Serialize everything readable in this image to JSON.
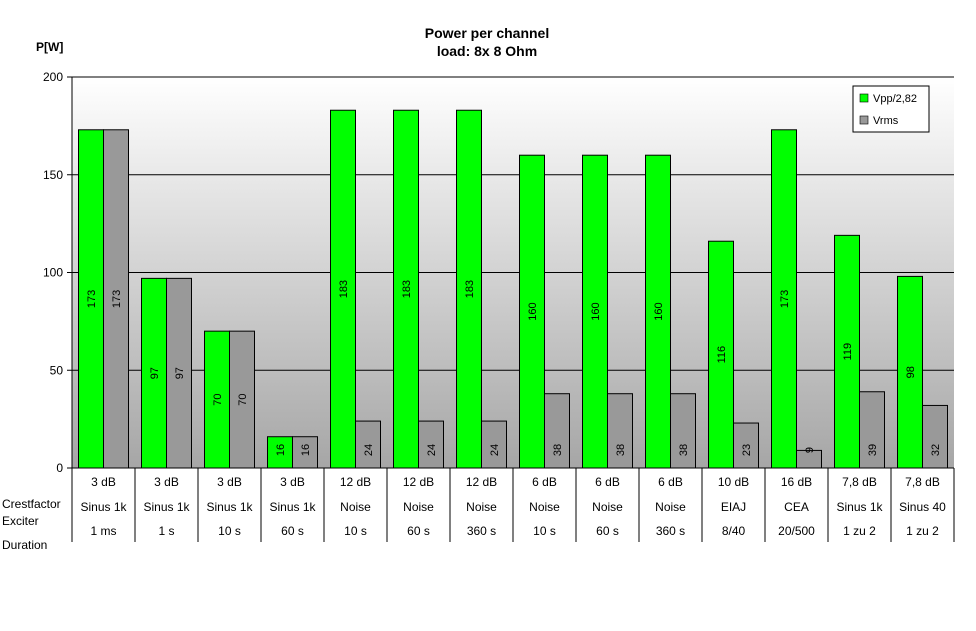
{
  "chart_data": {
    "type": "bar",
    "title_line1": "Power per channel",
    "title_line2": "load:  8x 8 Ohm",
    "ylabel": "P[W]",
    "ylim": [
      0,
      200
    ],
    "yticks": [
      0,
      50,
      100,
      150,
      200
    ],
    "grid": true,
    "legend_position": "top-right",
    "series": [
      {
        "name": "Vpp/2,82",
        "color": "#00ff00",
        "values": [
          173,
          97,
          70,
          16,
          183,
          183,
          183,
          160,
          160,
          160,
          116,
          173,
          119,
          98
        ]
      },
      {
        "name": "Vrms",
        "color": "#999999",
        "values": [
          173,
          97,
          70,
          16,
          24,
          24,
          24,
          38,
          38,
          38,
          23,
          9,
          39,
          32
        ]
      }
    ],
    "row_headers": [
      "Crestfactor",
      "Exciter",
      "Duration"
    ],
    "categories": [
      {
        "crestfactor": "3 dB",
        "exciter": "Sinus 1k",
        "duration": "1 ms"
      },
      {
        "crestfactor": "3 dB",
        "exciter": "Sinus 1k",
        "duration": "1 s"
      },
      {
        "crestfactor": "3 dB",
        "exciter": "Sinus 1k",
        "duration": "10 s"
      },
      {
        "crestfactor": "3 dB",
        "exciter": "Sinus 1k",
        "duration": "60 s"
      },
      {
        "crestfactor": "12 dB",
        "exciter": "Noise",
        "duration": "10 s"
      },
      {
        "crestfactor": "12 dB",
        "exciter": "Noise",
        "duration": "60 s"
      },
      {
        "crestfactor": "12 dB",
        "exciter": "Noise",
        "duration": "360 s"
      },
      {
        "crestfactor": "6 dB",
        "exciter": "Noise",
        "duration": "10 s"
      },
      {
        "crestfactor": "6 dB",
        "exciter": "Noise",
        "duration": "60 s"
      },
      {
        "crestfactor": "6 dB",
        "exciter": "Noise",
        "duration": "360 s"
      },
      {
        "crestfactor": "10 dB",
        "exciter": "EIAJ",
        "duration": "8/40"
      },
      {
        "crestfactor": "16 dB",
        "exciter": "CEA",
        "duration": "20/500"
      },
      {
        "crestfactor": "7,8 dB",
        "exciter": "Sinus 1k",
        "duration": "1 zu 2"
      },
      {
        "crestfactor": "7,8 dB",
        "exciter": "Sinus 40",
        "duration": "1 zu 2"
      }
    ]
  }
}
